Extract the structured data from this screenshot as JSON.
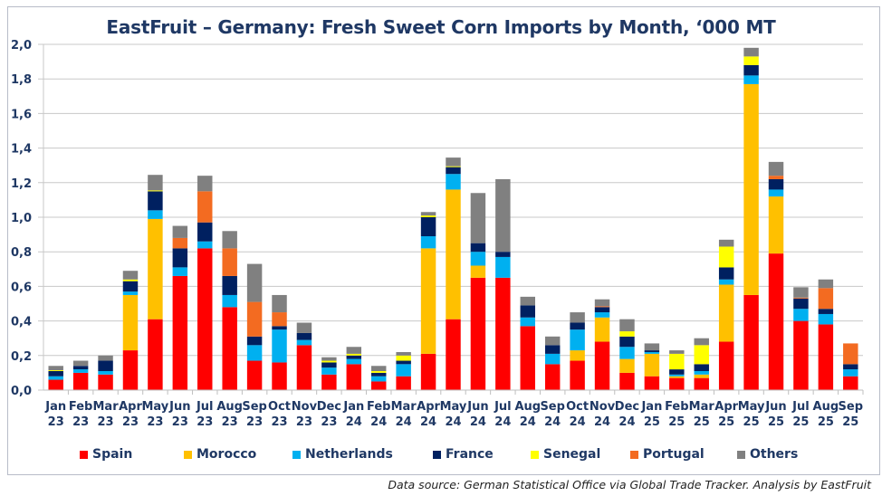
{
  "chart_data": {
    "type": "bar",
    "stacked": true,
    "title": "EastFruit – Germany: Fresh Sweet Corn Imports by Month, ‘000 MT",
    "xlabel": "",
    "ylabel": "",
    "ylim": [
      0,
      2.0
    ],
    "yticks": [
      "0,0",
      "0,2",
      "0,4",
      "0,6",
      "0,8",
      "1,0",
      "1,2",
      "1,4",
      "1,6",
      "1,8",
      "2,0"
    ],
    "grid": true,
    "legend_position": "bottom",
    "categories": [
      [
        "Jan",
        "23"
      ],
      [
        "Feb",
        "23"
      ],
      [
        "Mar",
        "23"
      ],
      [
        "Apr",
        "23"
      ],
      [
        "May",
        "23"
      ],
      [
        "Jun",
        "23"
      ],
      [
        "Jul",
        "23"
      ],
      [
        "Aug",
        "23"
      ],
      [
        "Sep",
        "23"
      ],
      [
        "Oct",
        "23"
      ],
      [
        "Nov",
        "23"
      ],
      [
        "Dec",
        "23"
      ],
      [
        "Jan",
        "24"
      ],
      [
        "Feb",
        "24"
      ],
      [
        "Mar",
        "24"
      ],
      [
        "Apr",
        "24"
      ],
      [
        "May",
        "24"
      ],
      [
        "Jun",
        "24"
      ],
      [
        "Jul",
        "24"
      ],
      [
        "Aug",
        "24"
      ],
      [
        "Sep",
        "24"
      ],
      [
        "Oct",
        "24"
      ],
      [
        "Nov",
        "24"
      ],
      [
        "Dec",
        "24"
      ],
      [
        "Jan",
        "25"
      ],
      [
        "Feb",
        "25"
      ],
      [
        "Mar",
        "25"
      ],
      [
        "Apr",
        "25"
      ],
      [
        "May",
        "25"
      ],
      [
        "Jun",
        "25"
      ],
      [
        "Jul",
        "25"
      ],
      [
        "Aug",
        "25"
      ],
      [
        "Sep",
        "25"
      ]
    ],
    "series": [
      {
        "name": "Spain",
        "color": "#ff0000",
        "values": [
          0.06,
          0.1,
          0.09,
          0.23,
          0.41,
          0.66,
          0.82,
          0.48,
          0.17,
          0.16,
          0.26,
          0.09,
          0.15,
          0.05,
          0.08,
          0.21,
          0.41,
          0.65,
          0.65,
          0.37,
          0.15,
          0.17,
          0.28,
          0.1,
          0.08,
          0.07,
          0.07,
          0.28,
          0.55,
          0.79,
          0.4,
          0.38,
          0.08
        ]
      },
      {
        "name": "Morocco",
        "color": "#ffc000",
        "values": [
          0,
          0,
          0,
          0.32,
          0.58,
          0,
          0,
          0,
          0,
          0,
          0,
          0,
          0,
          0,
          0,
          0.61,
          0.75,
          0.07,
          0,
          0,
          0,
          0.06,
          0.14,
          0.08,
          0.13,
          0.01,
          0.02,
          0.33,
          1.22,
          0.33,
          0,
          0,
          0
        ]
      },
      {
        "name": "Netherlands",
        "color": "#00b0f0",
        "values": [
          0.02,
          0.02,
          0.02,
          0.02,
          0.05,
          0.05,
          0.04,
          0.07,
          0.09,
          0.19,
          0.03,
          0.04,
          0.03,
          0.03,
          0.07,
          0.07,
          0.09,
          0.08,
          0.12,
          0.05,
          0.06,
          0.12,
          0.03,
          0.07,
          0.01,
          0.01,
          0.02,
          0.03,
          0.05,
          0.04,
          0.07,
          0.06,
          0.04
        ]
      },
      {
        "name": "France",
        "color": "#002060",
        "values": [
          0.03,
          0.02,
          0.06,
          0.06,
          0.11,
          0.11,
          0.11,
          0.11,
          0.05,
          0.02,
          0.04,
          0.03,
          0.02,
          0.02,
          0.02,
          0.11,
          0.04,
          0.05,
          0.03,
          0.07,
          0.05,
          0.04,
          0.03,
          0.06,
          0.01,
          0.03,
          0.04,
          0.07,
          0.06,
          0.06,
          0.06,
          0.03,
          0.03
        ]
      },
      {
        "name": "Senegal",
        "color": "#ffff00",
        "values": [
          0.005,
          0,
          0,
          0.01,
          0.005,
          0,
          0,
          0,
          0,
          0,
          0,
          0.01,
          0.01,
          0.01,
          0.03,
          0.01,
          0.005,
          0,
          0,
          0,
          0,
          0,
          0,
          0.03,
          0,
          0.09,
          0.11,
          0.12,
          0.05,
          0,
          0,
          0,
          0
        ]
      },
      {
        "name": "Portugal",
        "color": "#f36b21",
        "values": [
          0,
          0,
          0,
          0,
          0,
          0.06,
          0.18,
          0.16,
          0.2,
          0.08,
          0,
          0,
          0,
          0,
          0,
          0,
          0,
          0,
          0,
          0,
          0,
          0,
          0.005,
          0,
          0,
          0,
          0,
          0,
          0,
          0.02,
          0.005,
          0.12,
          0.12
        ]
      },
      {
        "name": "Others",
        "color": "#808080",
        "values": [
          0.025,
          0.03,
          0.03,
          0.05,
          0.09,
          0.07,
          0.09,
          0.1,
          0.22,
          0.1,
          0.06,
          0.02,
          0.04,
          0.03,
          0.02,
          0.02,
          0.05,
          0.29,
          0.42,
          0.05,
          0.05,
          0.06,
          0.04,
          0.07,
          0.04,
          0.02,
          0.04,
          0.04,
          0.05,
          0.08,
          0.06,
          0.05,
          0
        ]
      }
    ]
  },
  "footer": {
    "source": "Data source: German Statistical Office via Global Trade Tracker. Analysis by EastFruit"
  }
}
